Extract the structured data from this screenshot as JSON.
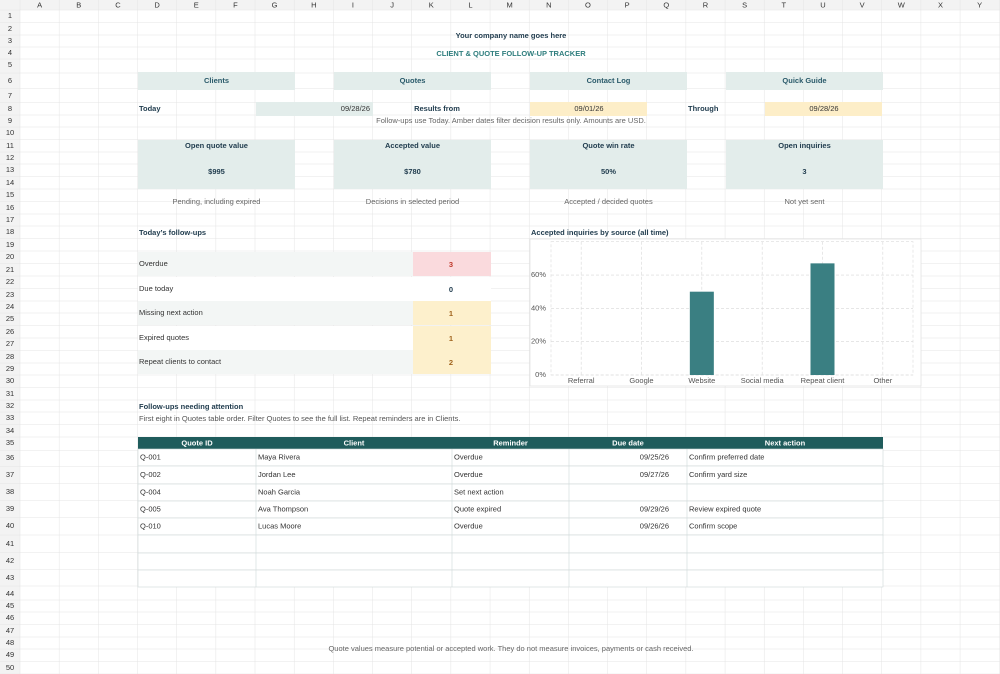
{
  "columns": [
    "A",
    "B",
    "C",
    "D",
    "E",
    "F",
    "G",
    "H",
    "I",
    "J",
    "K",
    "L",
    "M",
    "N",
    "O",
    "P",
    "Q",
    "R",
    "S",
    "T",
    "U",
    "V",
    "W",
    "X",
    "Y"
  ],
  "row_numbers": [
    1,
    2,
    3,
    4,
    5,
    6,
    7,
    8,
    9,
    10,
    11,
    12,
    13,
    14,
    15,
    16,
    17,
    18,
    19,
    20,
    21,
    22,
    23,
    24,
    25,
    26,
    27,
    28,
    29,
    30,
    31,
    32,
    33,
    34,
    35,
    36,
    37,
    38,
    39,
    40,
    41,
    42,
    43,
    44,
    45,
    46,
    47,
    48,
    49,
    50
  ],
  "header": {
    "title": "Your company name goes here",
    "subtitle": "CLIENT & QUOTE FOLLOW-UP TRACKER"
  },
  "nav": [
    "Clients",
    "Quotes",
    "Contact Log",
    "Quick Guide"
  ],
  "dates": [
    {
      "label": "Today",
      "value": "09/28/26"
    },
    {
      "label": "Results from",
      "value": "09/01/26"
    },
    {
      "label": "Through",
      "value": "09/28/26"
    }
  ],
  "dates_note": "Follow-ups use Today. Amber dates filter decision results only. Amounts are USD.",
  "kpis": [
    {
      "label": "Open quote value",
      "value": "$995",
      "note": "Pending, including expired"
    },
    {
      "label": "Accepted value",
      "value": "$780",
      "note": "Decisions in selected period"
    },
    {
      "label": "Quote win rate",
      "value": "50%",
      "note": "Accepted / decided quotes"
    },
    {
      "label": "Open inquiries",
      "value": "3",
      "note": "Not yet sent"
    }
  ],
  "followups": {
    "title": "Today’s follow-ups",
    "items": [
      {
        "label": "Overdue",
        "count": 3
      },
      {
        "label": "Due today",
        "count": 0
      },
      {
        "label": "Missing next action",
        "count": 1
      },
      {
        "label": "Expired quotes",
        "count": 1
      },
      {
        "label": "Repeat clients to contact",
        "count": 2
      }
    ]
  },
  "chart_data": {
    "type": "bar",
    "title": "Accepted inquiries by source (all time)",
    "categories": [
      "Referral",
      "Google",
      "Website",
      "Social media",
      "Repeat client",
      "Other"
    ],
    "values": [
      0,
      0,
      50,
      0,
      67,
      0
    ],
    "color": "#3a7f82",
    "ylim": [
      0,
      80
    ],
    "yticks": [
      {
        "value": 0,
        "label": "0%"
      },
      {
        "value": 20,
        "label": "20%"
      },
      {
        "value": 40,
        "label": "40%"
      },
      {
        "value": 60,
        "label": "60%"
      }
    ],
    "grid": true
  },
  "attention": {
    "title": "Follow-ups needing attention",
    "subtitle": "First eight in Quotes table order. Filter Quotes to see the full list. Repeat reminders are in Clients.",
    "headers": [
      "Quote ID",
      "Client",
      "Reminder",
      "Due date",
      "Next action"
    ],
    "rows": [
      {
        "id": "Q-001",
        "client": "Maya Rivera",
        "reminder": "Overdue",
        "due": "09/25/26",
        "next": "Confirm preferred date"
      },
      {
        "id": "Q-002",
        "client": "Jordan Lee",
        "reminder": "Overdue",
        "due": "09/27/26",
        "next": "Confirm yard size"
      },
      {
        "id": "Q-004",
        "client": "Noah Garcia",
        "reminder": "Set next action"
      },
      {
        "id": "Q-005",
        "client": "Ava Thompson",
        "reminder": "Quote expired",
        "due": "09/29/26",
        "next": "Review expired quote"
      },
      {
        "id": "Q-010",
        "client": "Lucas Moore",
        "reminder": "Overdue",
        "due": "09/26/26",
        "next": "Confirm scope"
      }
    ]
  },
  "footer": "Quote values measure potential or accepted work. They do not measure invoices, payments or cash received."
}
